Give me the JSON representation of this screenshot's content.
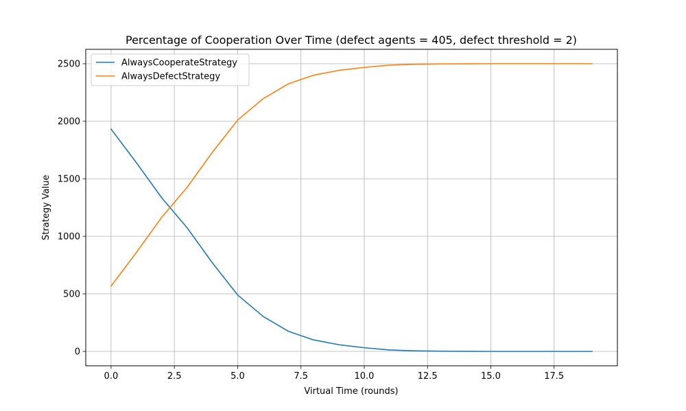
{
  "chart_data": {
    "type": "line",
    "title": "Percentage of Cooperation Over Time (defect agents = 405, defect threshold = 2)",
    "xlabel": "Virtual Time (rounds)",
    "ylabel": "Strategy Value",
    "xlim": [
      -1,
      20
    ],
    "ylim": [
      -125,
      2625
    ],
    "xticks": [
      0.0,
      2.5,
      5.0,
      7.5,
      10.0,
      12.5,
      15.0,
      17.5
    ],
    "xtick_labels": [
      "0.0",
      "2.5",
      "5.0",
      "7.5",
      "10.0",
      "12.5",
      "15.0",
      "17.5"
    ],
    "yticks": [
      0,
      500,
      1000,
      1500,
      2000,
      2500
    ],
    "ytick_labels": [
      "0",
      "500",
      "1000",
      "1500",
      "2000",
      "2500"
    ],
    "grid": true,
    "legend_position": "upper-left",
    "x": [
      0,
      1,
      2,
      3,
      4,
      5,
      6,
      7,
      8,
      9,
      10,
      11,
      12,
      13,
      14,
      15,
      16,
      17,
      18,
      19
    ],
    "series": [
      {
        "name": "AlwaysCooperateStrategy",
        "color": "#1f77b4",
        "values": [
          1932,
          1640,
          1335,
          1075,
          770,
          490,
          305,
          175,
          100,
          58,
          32,
          12,
          5,
          2,
          1,
          0,
          0,
          0,
          0,
          0
        ]
      },
      {
        "name": "AlwaysDefectStrategy",
        "color": "#ff7f0e",
        "values": [
          568,
          860,
          1165,
          1425,
          1730,
          2010,
          2195,
          2325,
          2400,
          2442,
          2468,
          2488,
          2495,
          2498,
          2499,
          2500,
          2500,
          2500,
          2500,
          2500
        ]
      }
    ]
  }
}
